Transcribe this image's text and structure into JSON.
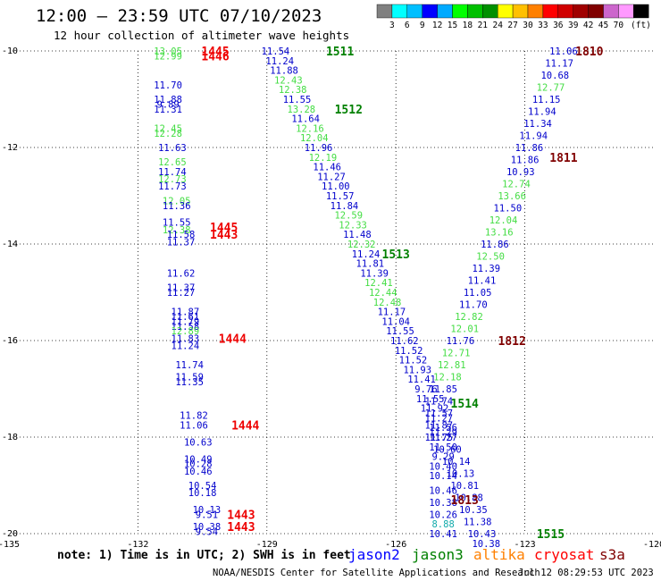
{
  "header": {
    "title": "12:00 – 23:59 UTC 07/10/2023",
    "subtitle": "12 hour collection of altimeter wave heights"
  },
  "colorbar": {
    "unit": "(ft)",
    "colors": [
      "#808080",
      "#00ffff",
      "#00bfff",
      "#0000ff",
      "#00aaff",
      "#00ff00",
      "#00c000",
      "#009000",
      "#ffff00",
      "#ffc000",
      "#ff8000",
      "#ff0000",
      "#d00000",
      "#a00000",
      "#800000",
      "#cc66cc",
      "#ff99ff",
      "#000000"
    ],
    "labels": [
      "3",
      "6",
      "9",
      "12",
      "15",
      "18",
      "21",
      "24",
      "27",
      "30",
      "33",
      "36",
      "39",
      "42",
      "45",
      "70"
    ]
  },
  "footer": {
    "note": "note: 1) Time is in UTC; 2) SWH is in feet",
    "credit": "NOAA/NESDIS Center for Satellite Applications and Research",
    "timestamp": "Jul 12 08:29:53 UTC 2023"
  },
  "legend": [
    {
      "name": "jason2",
      "color": "#0000ff"
    },
    {
      "name": "jason3",
      "color": "#008000"
    },
    {
      "name": "altika",
      "color": "#ff8000"
    },
    {
      "name": "cryosat",
      "color": "#ff0000"
    },
    {
      "name": "s3a",
      "color": "#800000"
    }
  ],
  "chart_data": {
    "type": "scatter",
    "xlim": [
      -135,
      -120
    ],
    "ylim": [
      -20,
      -10
    ],
    "x_ticks": [
      "-135",
      "-132",
      "-129",
      "-126",
      "-123",
      "-120"
    ],
    "y_ticks": [
      "-10",
      "-12",
      "-14",
      "-16",
      "-18",
      "-20"
    ],
    "grid": true,
    "value_colors": {
      "b": "#0000cc",
      "g": "#44dd44",
      "c": "#11aaaa"
    },
    "points": [
      {
        "x": -131.3,
        "y": -10.0,
        "v": "13.05",
        "c": "g"
      },
      {
        "x": -131.3,
        "y": -10.1,
        "v": "12.99",
        "c": "g"
      },
      {
        "x": -131.3,
        "y": -10.7,
        "v": "11.70",
        "c": "b"
      },
      {
        "x": -131.3,
        "y": -11.0,
        "v": "11.88",
        "c": "b"
      },
      {
        "x": -131.3,
        "y": -11.1,
        "v": "9.89",
        "c": "b"
      },
      {
        "x": -131.3,
        "y": -11.2,
        "v": "11.31",
        "c": "b"
      },
      {
        "x": -131.3,
        "y": -11.6,
        "v": "12.45",
        "c": "g"
      },
      {
        "x": -131.3,
        "y": -11.7,
        "v": "12.28",
        "c": "g"
      },
      {
        "x": -131.2,
        "y": -12.0,
        "v": "11.63",
        "c": "b"
      },
      {
        "x": -131.2,
        "y": -12.3,
        "v": "12.65",
        "c": "g"
      },
      {
        "x": -131.2,
        "y": -12.5,
        "v": "11.74",
        "c": "b"
      },
      {
        "x": -131.2,
        "y": -12.65,
        "v": "12.73",
        "c": "g"
      },
      {
        "x": -131.2,
        "y": -12.8,
        "v": "11.73",
        "c": "b"
      },
      {
        "x": -131.1,
        "y": -13.1,
        "v": "12.05",
        "c": "g"
      },
      {
        "x": -131.1,
        "y": -13.2,
        "v": "11.36",
        "c": "b"
      },
      {
        "x": -131.1,
        "y": -13.55,
        "v": "11.55",
        "c": "b"
      },
      {
        "x": -131.1,
        "y": -13.7,
        "v": "12.38",
        "c": "g"
      },
      {
        "x": -131.0,
        "y": -13.8,
        "v": "11.58",
        "c": "b"
      },
      {
        "x": -131.0,
        "y": -13.95,
        "v": "11.37",
        "c": "b"
      },
      {
        "x": -131.0,
        "y": -14.6,
        "v": "11.62",
        "c": "b"
      },
      {
        "x": -131.0,
        "y": -14.9,
        "v": "11.37",
        "c": "b"
      },
      {
        "x": -131.0,
        "y": -15.0,
        "v": "11.27",
        "c": "b"
      },
      {
        "x": -130.9,
        "y": -15.4,
        "v": "11.87",
        "c": "b"
      },
      {
        "x": -130.9,
        "y": -15.5,
        "v": "11.61",
        "c": "b"
      },
      {
        "x": -130.9,
        "y": -15.6,
        "v": "11.79",
        "c": "b"
      },
      {
        "x": -130.9,
        "y": -15.7,
        "v": "11.58",
        "c": "b"
      },
      {
        "x": -130.9,
        "y": -15.8,
        "v": "12.89",
        "c": "g"
      },
      {
        "x": -130.9,
        "y": -15.95,
        "v": "11.83",
        "c": "b"
      },
      {
        "x": -130.9,
        "y": -16.1,
        "v": "11.24",
        "c": "b"
      },
      {
        "x": -130.8,
        "y": -16.5,
        "v": "11.74",
        "c": "b"
      },
      {
        "x": -130.8,
        "y": -16.75,
        "v": "11.59",
        "c": "b"
      },
      {
        "x": -130.8,
        "y": -16.85,
        "v": "11.35",
        "c": "b"
      },
      {
        "x": -130.7,
        "y": -17.55,
        "v": "11.82",
        "c": "b"
      },
      {
        "x": -130.7,
        "y": -17.75,
        "v": "11.06",
        "c": "b"
      },
      {
        "x": -130.6,
        "y": -18.1,
        "v": "10.63",
        "c": "b"
      },
      {
        "x": -130.6,
        "y": -18.45,
        "v": "10.49",
        "c": "b"
      },
      {
        "x": -130.6,
        "y": -18.55,
        "v": "10.28",
        "c": "b"
      },
      {
        "x": -130.6,
        "y": -18.7,
        "v": "10.46",
        "c": "b"
      },
      {
        "x": -130.5,
        "y": -19.0,
        "v": "10.54",
        "c": "b"
      },
      {
        "x": -130.5,
        "y": -19.15,
        "v": "10.18",
        "c": "b"
      },
      {
        "x": -130.4,
        "y": -19.5,
        "v": "10.13",
        "c": "b"
      },
      {
        "x": -130.4,
        "y": -19.6,
        "v": "9.51",
        "c": "b"
      },
      {
        "x": -130.4,
        "y": -19.85,
        "v": "10.38",
        "c": "b"
      },
      {
        "x": -130.4,
        "y": -19.95,
        "v": "9.54",
        "c": "b"
      },
      {
        "x": -128.8,
        "y": -10.0,
        "v": "11.54",
        "c": "b"
      },
      {
        "x": -128.7,
        "y": -10.2,
        "v": "11.24",
        "c": "b"
      },
      {
        "x": -128.6,
        "y": -10.4,
        "v": "11.88",
        "c": "b"
      },
      {
        "x": -128.5,
        "y": -10.6,
        "v": "12.43",
        "c": "g"
      },
      {
        "x": -128.4,
        "y": -10.8,
        "v": "12.38",
        "c": "g"
      },
      {
        "x": -128.3,
        "y": -11.0,
        "v": "11.55",
        "c": "b"
      },
      {
        "x": -128.2,
        "y": -11.2,
        "v": "13.28",
        "c": "g"
      },
      {
        "x": -128.1,
        "y": -11.4,
        "v": "11.64",
        "c": "b"
      },
      {
        "x": -128.0,
        "y": -11.6,
        "v": "12.16",
        "c": "g"
      },
      {
        "x": -127.9,
        "y": -11.8,
        "v": "12.04",
        "c": "g"
      },
      {
        "x": -127.8,
        "y": -12.0,
        "v": "11.96",
        "c": "b"
      },
      {
        "x": -127.7,
        "y": -12.2,
        "v": "12.19",
        "c": "g"
      },
      {
        "x": -127.6,
        "y": -12.4,
        "v": "11.46",
        "c": "b"
      },
      {
        "x": -127.5,
        "y": -12.6,
        "v": "11.27",
        "c": "b"
      },
      {
        "x": -127.4,
        "y": -12.8,
        "v": "11.00",
        "c": "b"
      },
      {
        "x": -127.3,
        "y": -13.0,
        "v": "11.57",
        "c": "b"
      },
      {
        "x": -127.2,
        "y": -13.2,
        "v": "11.84",
        "c": "b"
      },
      {
        "x": -127.1,
        "y": -13.4,
        "v": "12.59",
        "c": "g"
      },
      {
        "x": -127.0,
        "y": -13.6,
        "v": "12.33",
        "c": "g"
      },
      {
        "x": -126.9,
        "y": -13.8,
        "v": "11.48",
        "c": "b"
      },
      {
        "x": -126.8,
        "y": -14.0,
        "v": "12.32",
        "c": "g"
      },
      {
        "x": -126.7,
        "y": -14.2,
        "v": "11.24",
        "c": "b"
      },
      {
        "x": -126.6,
        "y": -14.4,
        "v": "11.81",
        "c": "b"
      },
      {
        "x": -126.5,
        "y": -14.6,
        "v": "11.39",
        "c": "b"
      },
      {
        "x": -126.4,
        "y": -14.8,
        "v": "12.41",
        "c": "g"
      },
      {
        "x": -126.3,
        "y": -15.0,
        "v": "12.44",
        "c": "g"
      },
      {
        "x": -126.2,
        "y": -15.2,
        "v": "12.48",
        "c": "g"
      },
      {
        "x": -126.1,
        "y": -15.4,
        "v": "11.17",
        "c": "b"
      },
      {
        "x": -126.0,
        "y": -15.6,
        "v": "11.04",
        "c": "b"
      },
      {
        "x": -125.9,
        "y": -15.8,
        "v": "11.55",
        "c": "b"
      },
      {
        "x": -125.8,
        "y": -16.0,
        "v": "11.62",
        "c": "b"
      },
      {
        "x": -125.7,
        "y": -16.2,
        "v": "11.52",
        "c": "b"
      },
      {
        "x": -125.6,
        "y": -16.4,
        "v": "11.52",
        "c": "b"
      },
      {
        "x": -125.5,
        "y": -16.6,
        "v": "11.93",
        "c": "b"
      },
      {
        "x": -125.4,
        "y": -16.8,
        "v": "11.41",
        "c": "b"
      },
      {
        "x": -125.3,
        "y": -17.0,
        "v": "9.76",
        "c": "b"
      },
      {
        "x": -125.2,
        "y": -17.2,
        "v": "11.55",
        "c": "b"
      },
      {
        "x": -125.1,
        "y": -17.4,
        "v": "11.92",
        "c": "b"
      },
      {
        "x": -125.0,
        "y": -17.6,
        "v": "11.27",
        "c": "b"
      },
      {
        "x": -124.9,
        "y": -17.8,
        "v": "11.56",
        "c": "b"
      },
      {
        "x": -124.9,
        "y": -17.9,
        "v": "11.29",
        "c": "b"
      },
      {
        "x": -124.9,
        "y": -18.0,
        "v": "11.27",
        "c": "b"
      },
      {
        "x": -124.9,
        "y": -18.2,
        "v": "11.50",
        "c": "b"
      },
      {
        "x": -124.9,
        "y": -18.4,
        "v": "9.29",
        "c": "b"
      },
      {
        "x": -124.9,
        "y": -18.6,
        "v": "10.40",
        "c": "b"
      },
      {
        "x": -124.9,
        "y": -18.8,
        "v": "10.14",
        "c": "b"
      },
      {
        "x": -124.9,
        "y": -19.1,
        "v": "10.46",
        "c": "b"
      },
      {
        "x": -124.9,
        "y": -19.35,
        "v": "10.38",
        "c": "b"
      },
      {
        "x": -124.9,
        "y": -19.6,
        "v": "10.26",
        "c": "b"
      },
      {
        "x": -124.9,
        "y": -19.8,
        "v": "8.88",
        "c": "c"
      },
      {
        "x": -124.9,
        "y": -20.0,
        "v": "10.41",
        "c": "b"
      },
      {
        "x": -122.1,
        "y": -10.0,
        "v": "11.06",
        "c": "b"
      },
      {
        "x": -122.2,
        "y": -10.25,
        "v": "11.17",
        "c": "b"
      },
      {
        "x": -122.3,
        "y": -10.5,
        "v": "10.68",
        "c": "b"
      },
      {
        "x": -122.4,
        "y": -10.75,
        "v": "12.77",
        "c": "g"
      },
      {
        "x": -122.5,
        "y": -11.0,
        "v": "11.15",
        "c": "b"
      },
      {
        "x": -122.6,
        "y": -11.25,
        "v": "11.94",
        "c": "b"
      },
      {
        "x": -122.7,
        "y": -11.5,
        "v": "11.34",
        "c": "b"
      },
      {
        "x": -122.8,
        "y": -11.75,
        "v": "11.94",
        "c": "b"
      },
      {
        "x": -122.9,
        "y": -12.0,
        "v": "11.86",
        "c": "b"
      },
      {
        "x": -123.0,
        "y": -12.25,
        "v": "11.86",
        "c": "b"
      },
      {
        "x": -123.1,
        "y": -12.5,
        "v": "10.93",
        "c": "b"
      },
      {
        "x": -123.2,
        "y": -12.75,
        "v": "12.74",
        "c": "g"
      },
      {
        "x": -123.3,
        "y": -13.0,
        "v": "13.66",
        "c": "g"
      },
      {
        "x": -123.4,
        "y": -13.25,
        "v": "11.50",
        "c": "b"
      },
      {
        "x": -123.5,
        "y": -13.5,
        "v": "12.04",
        "c": "g"
      },
      {
        "x": -123.6,
        "y": -13.75,
        "v": "13.16",
        "c": "g"
      },
      {
        "x": -123.7,
        "y": -14.0,
        "v": "11.86",
        "c": "b"
      },
      {
        "x": -123.8,
        "y": -14.25,
        "v": "12.50",
        "c": "g"
      },
      {
        "x": -123.9,
        "y": -14.5,
        "v": "11.39",
        "c": "b"
      },
      {
        "x": -124.0,
        "y": -14.75,
        "v": "11.41",
        "c": "b"
      },
      {
        "x": -124.1,
        "y": -15.0,
        "v": "11.05",
        "c": "b"
      },
      {
        "x": -124.2,
        "y": -15.25,
        "v": "11.70",
        "c": "b"
      },
      {
        "x": -124.3,
        "y": -15.5,
        "v": "12.82",
        "c": "g"
      },
      {
        "x": -124.4,
        "y": -15.75,
        "v": "12.01",
        "c": "g"
      },
      {
        "x": -124.5,
        "y": -16.0,
        "v": "11.76",
        "c": "b"
      },
      {
        "x": -124.6,
        "y": -16.25,
        "v": "12.71",
        "c": "g"
      },
      {
        "x": -124.7,
        "y": -16.5,
        "v": "12.81",
        "c": "g"
      },
      {
        "x": -124.8,
        "y": -16.75,
        "v": "12.18",
        "c": "g"
      },
      {
        "x": -124.9,
        "y": -17.0,
        "v": "11.85",
        "c": "b"
      },
      {
        "x": -125.0,
        "y": -17.25,
        "v": "11.74",
        "c": "b"
      },
      {
        "x": -125.0,
        "y": -17.5,
        "v": "11.57",
        "c": "b"
      },
      {
        "x": -125.0,
        "y": -17.75,
        "v": "11.87",
        "c": "b"
      },
      {
        "x": -125.0,
        "y": -18.0,
        "v": "11.75",
        "c": "b"
      },
      {
        "x": -124.8,
        "y": -18.25,
        "v": "10.60",
        "c": "b"
      },
      {
        "x": -124.6,
        "y": -18.5,
        "v": "10.14",
        "c": "b"
      },
      {
        "x": -124.5,
        "y": -18.75,
        "v": "10.13",
        "c": "b"
      },
      {
        "x": -124.4,
        "y": -19.0,
        "v": "10.81",
        "c": "b"
      },
      {
        "x": -124.3,
        "y": -19.25,
        "v": "10.88",
        "c": "b"
      },
      {
        "x": -124.2,
        "y": -19.5,
        "v": "10.35",
        "c": "b"
      },
      {
        "x": -124.1,
        "y": -19.75,
        "v": "11.38",
        "c": "b"
      },
      {
        "x": -124.0,
        "y": -20.0,
        "v": "10.43",
        "c": "b"
      },
      {
        "x": -123.9,
        "y": -20.2,
        "v": "10.38",
        "c": "b"
      }
    ],
    "orbits": [
      {
        "x": -130.2,
        "y": -10.0,
        "label": "1445",
        "color": "#ee0000"
      },
      {
        "x": -130.2,
        "y": -10.1,
        "label": "1446",
        "color": "#ee0000"
      },
      {
        "x": -127.3,
        "y": -10.0,
        "label": "1511",
        "color": "#008000"
      },
      {
        "x": -127.1,
        "y": -11.2,
        "label": "1512",
        "color": "#008000"
      },
      {
        "x": -126.0,
        "y": -14.2,
        "label": "1513",
        "color": "#008000"
      },
      {
        "x": -124.4,
        "y": -17.3,
        "label": "1514",
        "color": "#008000"
      },
      {
        "x": -122.4,
        "y": -20.0,
        "label": "1515",
        "color": "#008000"
      },
      {
        "x": -130.0,
        "y": -13.65,
        "label": "1445",
        "color": "#ee0000"
      },
      {
        "x": -130.0,
        "y": -13.8,
        "label": "1443",
        "color": "#ee0000"
      },
      {
        "x": -129.8,
        "y": -15.95,
        "label": "1444",
        "color": "#ee0000"
      },
      {
        "x": -129.5,
        "y": -17.75,
        "label": "1444",
        "color": "#ee0000"
      },
      {
        "x": -129.6,
        "y": -19.6,
        "label": "1443",
        "color": "#ee0000"
      },
      {
        "x": -129.6,
        "y": -19.85,
        "label": "1443",
        "color": "#ee0000"
      },
      {
        "x": -121.5,
        "y": -10.0,
        "label": "1810",
        "color": "#800000"
      },
      {
        "x": -122.1,
        "y": -12.2,
        "label": "1811",
        "color": "#800000"
      },
      {
        "x": -123.3,
        "y": -16.0,
        "label": "1812",
        "color": "#800000"
      },
      {
        "x": -124.4,
        "y": -19.3,
        "label": "1813",
        "color": "#800000"
      }
    ]
  }
}
